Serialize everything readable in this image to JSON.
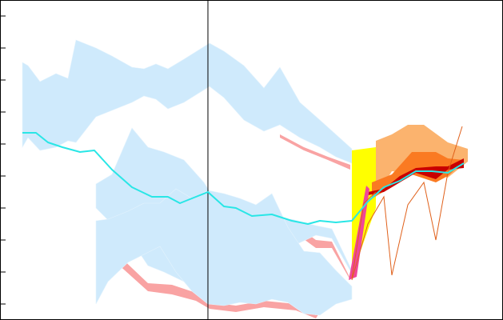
{
  "chart_data": {
    "type": "area",
    "title": "",
    "xlabel": "",
    "ylabel": "",
    "xlim": [
      0,
      629
    ],
    "ylim": [
      0,
      20
    ],
    "y_ticks": [
      1,
      3,
      5,
      7,
      9,
      11,
      13,
      15,
      17,
      19
    ],
    "x_ticks": [],
    "vline_x": 260,
    "grid": false,
    "legend": "none",
    "colors": {
      "band_light_blue": "#cfeafc",
      "band_salmon": "#f9a3a3",
      "line_cyan": "#29e6e6",
      "fan_yellow": "#ffff00",
      "fan_peach": "#fbb36e",
      "fan_orange": "#fa7a22",
      "fan_dark_red": "#c80000",
      "fan_magenta": "#f0469a",
      "thin_line_orange": "#e0601a"
    },
    "bands": [
      {
        "name": "",
        "role": "top-band",
        "x": [
          28,
          35,
          50,
          70,
          85,
          95,
          120,
          140,
          165,
          180,
          195,
          210,
          230,
          262,
          280,
          305,
          330,
          350,
          375,
          400,
          420,
          440
        ],
        "low": [
          10.8,
          11.4,
          10.6,
          10.8,
          11.2,
          11.1,
          12.7,
          13.1,
          13.6,
          14.0,
          13.8,
          13.2,
          13.6,
          14.6,
          13.9,
          12.5,
          11.8,
          12.2,
          11.4,
          10.8,
          10.2,
          9.8
        ],
        "high": [
          16.1,
          15.9,
          14.9,
          15.4,
          15.1,
          17.5,
          17.0,
          16.5,
          15.8,
          15.7,
          16.0,
          15.7,
          16.3,
          17.3,
          16.8,
          15.9,
          14.5,
          15.8,
          13.6,
          12.5,
          11.6,
          10.7
        ]
      },
      {
        "name": "",
        "role": "middle-band",
        "x": [
          120,
          140,
          165,
          185,
          205,
          230,
          255,
          275,
          300,
          330,
          365,
          395,
          415,
          440
        ],
        "low": [
          7.0,
          6.0,
          4.9,
          3.4,
          3.0,
          2.4,
          2.1,
          3.2,
          3.3,
          4.0,
          4.6,
          5.3,
          5.1,
          2.9
        ],
        "high": [
          8.5,
          9.1,
          12.0,
          10.8,
          10.5,
          10.0,
          8.6,
          7.0,
          6.6,
          6.2,
          6.3,
          5.9,
          5.7,
          3.1
        ]
      },
      {
        "name": "",
        "role": "lower-band",
        "x": [
          120,
          135,
          160,
          180,
          200,
          220,
          240,
          260,
          280,
          300,
          320,
          340,
          360,
          380,
          400,
          420,
          440
        ],
        "low": [
          1.0,
          2.4,
          3.6,
          4.1,
          4.6,
          3.0,
          1.8,
          1.0,
          0.9,
          1.1,
          1.0,
          1.3,
          1.1,
          0.4,
          0.3,
          1.0,
          1.3
        ],
        "high": [
          6.2,
          6.3,
          6.8,
          7.3,
          7.3,
          8.2,
          7.6,
          8.1,
          7.9,
          7.6,
          7.2,
          7.9,
          5.8,
          4.3,
          4.2,
          3.1,
          2.1
        ]
      }
    ],
    "salmon_edges": [
      {
        "name": "",
        "x": [
          350,
          380,
          410,
          438
        ],
        "y_top": [
          11.6,
          10.8,
          10.2,
          9.7
        ],
        "y_bottom": [
          11.4,
          10.6,
          10.0,
          9.4
        ]
      },
      {
        "name": "",
        "x": [
          120,
          145,
          185,
          215,
          245,
          262,
          295,
          330,
          370,
          395,
          420,
          438
        ],
        "y_top": [
          6.2,
          4.2,
          2.3,
          2.2,
          1.7,
          1.1,
          0.9,
          1.2,
          1.0,
          0.3,
          2.2,
          2.0
        ],
        "y_bottom": [
          6.0,
          3.6,
          1.8,
          1.6,
          1.2,
          0.7,
          0.5,
          0.8,
          0.6,
          0.1,
          2.1,
          1.8
        ]
      },
      {
        "name": "",
        "x": [
          255,
          280,
          300,
          330,
          365,
          395,
          415,
          438
        ],
        "y_top": [
          7.8,
          6.9,
          6.6,
          5.5,
          6.1,
          5.0,
          4.9,
          2.6
        ],
        "y_bottom": [
          7.4,
          6.4,
          6.2,
          4.9,
          5.6,
          4.5,
          4.5,
          2.5
        ]
      }
    ],
    "series": [
      {
        "name": "",
        "x": [
          28,
          45,
          60,
          78,
          100,
          118,
          140,
          165,
          190,
          210,
          225,
          245,
          260,
          280,
          295,
          315,
          340,
          365,
          385,
          400,
          420,
          440,
          460,
          480,
          500,
          520,
          540,
          560,
          580
        ],
        "values": [
          11.7,
          11.7,
          11.1,
          10.8,
          10.5,
          10.6,
          9.4,
          8.3,
          7.7,
          7.7,
          7.3,
          7.7,
          8.0,
          7.1,
          7.0,
          6.5,
          6.6,
          6.2,
          6.0,
          6.2,
          6.1,
          6.2,
          7.4,
          8.3,
          8.7,
          9.3,
          9.3,
          9.2,
          9.8
        ]
      }
    ],
    "fan": [
      {
        "name": "",
        "x": [
          440,
          470
        ],
        "low": [
          2.8,
          7.0
        ],
        "high": [
          10.6,
          10.8
        ]
      },
      {
        "name": "",
        "x": [
          470,
          490,
          510,
          530,
          560,
          585
        ],
        "low": [
          7.7,
          9.3,
          9.2,
          9.5,
          8.9,
          9.9
        ],
        "high": [
          11.2,
          11.6,
          12.2,
          12.2,
          11.1,
          10.7
        ]
      },
      {
        "name": "",
        "x": [
          465,
          490,
          515,
          545,
          560,
          580
        ],
        "low": [
          7.6,
          8.3,
          9.1,
          8.6,
          9.0,
          9.9
        ],
        "high": [
          8.6,
          9.1,
          10.5,
          10.5,
          10.1,
          10.0
        ]
      },
      {
        "name": "",
        "x": [
          460,
          480,
          500,
          520,
          545,
          560,
          580
        ],
        "low": [
          7.8,
          8.0,
          8.6,
          9.2,
          8.8,
          9.4,
          9.5
        ],
        "high": [
          8.0,
          8.2,
          9.0,
          9.5,
          9.6,
          9.6,
          10.1
        ]
      }
    ],
    "thin_lines": [
      {
        "name": "",
        "x": [
          440,
          460,
          480,
          490,
          510,
          530,
          545,
          560,
          578
        ],
        "values": [
          2.5,
          6.0,
          7.7,
          2.8,
          7.2,
          8.6,
          5.0,
          9.2,
          12.1
        ]
      },
      {
        "name": "",
        "x": [
          440,
          455,
          470
        ],
        "values": [
          2.6,
          7.3,
          8.0
        ]
      }
    ]
  }
}
